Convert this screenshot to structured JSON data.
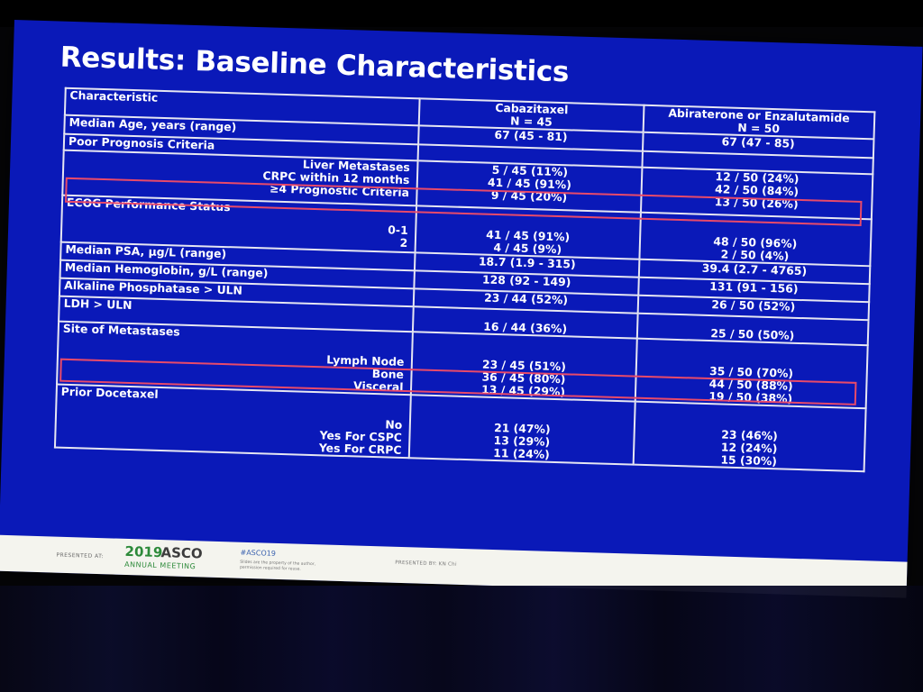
{
  "slide": {
    "title": "Results: Baseline Characteristics",
    "highlight_color": "#e84a6a",
    "table": {
      "header": {
        "characteristic": "Characteristic",
        "col1_name": "Cabazitaxel",
        "col1_n": "N = 45",
        "col2_name": "Abiraterone or Enzalutamide",
        "col2_n": "N = 50"
      },
      "median_age": {
        "label": "Median Age, years (range)",
        "cab": "67 (45 - 81)",
        "abi": "67 (47 - 85)"
      },
      "poor_prognosis": {
        "label": "Poor Prognosis Criteria",
        "liver": {
          "label": "Liver Metastases",
          "cab": "5 / 45 (11%)",
          "abi": "12 / 50 (24%)"
        },
        "crpc": {
          "label": "CRPC within 12 months",
          "cab": "41 / 45 (91%)",
          "abi": "42 / 50 (84%)"
        },
        "four": {
          "label": "≥4 Prognostic Criteria",
          "cab": "9 / 45 (20%)",
          "abi": "13 / 50 (26%)"
        }
      },
      "ecog": {
        "label": "ECOG Performance Status",
        "r01": {
          "label": "0-1",
          "cab": "41 / 45 (91%)",
          "abi": "48 / 50 (96%)"
        },
        "r2": {
          "label": "2",
          "cab": "4 / 45 (9%)",
          "abi": "2 / 50 (4%)"
        }
      },
      "median_psa": {
        "label": "Median PSA, µg/L (range)",
        "cab": "18.7 (1.9 - 315)",
        "abi": "39.4 (2.7 - 4765)"
      },
      "median_hgb": {
        "label": "Median Hemoglobin, g/L (range)",
        "cab": "128 (92 - 149)",
        "abi": "131 (91 - 156)"
      },
      "alk_phos": {
        "label": "Alkaline Phosphatase > ULN",
        "cab": "23 / 44 (52%)",
        "abi": "26 / 50 (52%)"
      },
      "ldh": {
        "label": "LDH > ULN",
        "cab": "16 / 44 (36%)",
        "abi": "25 / 50 (50%)"
      },
      "site_mets": {
        "label": "Site of Metastases",
        "lymph": {
          "label": "Lymph Node",
          "cab": "23 / 45 (51%)",
          "abi": "35 / 50 (70%)"
        },
        "bone": {
          "label": "Bone",
          "cab": "36 / 45 (80%)",
          "abi": "44 / 50 (88%)"
        },
        "visceral": {
          "label": "Visceral",
          "cab": "13 / 45 (29%)",
          "abi": "19 / 50 (38%)"
        }
      },
      "prior_docetaxel": {
        "label": "Prior Docetaxel",
        "no": {
          "label": "No",
          "cab": "21 (47%)",
          "abi": "23 (46%)"
        },
        "cspc": {
          "label": "Yes For CSPC",
          "cab": "13 (29%)",
          "abi": "12 (24%)"
        },
        "crpc": {
          "label": "Yes For CRPC",
          "cab": "11 (24%)",
          "abi": "15 (30%)"
        }
      }
    }
  },
  "footer": {
    "presented_at": "PRESENTED AT:",
    "year": "2019",
    "asco": "ASCO",
    "annual_meeting": "ANNUAL MEETING",
    "hashtag": "#ASCO19",
    "slide_note_1": "Slides are the property of the author,",
    "slide_note_2": "permission required for reuse.",
    "presented_by": "PRESENTED BY: KN Chi"
  }
}
